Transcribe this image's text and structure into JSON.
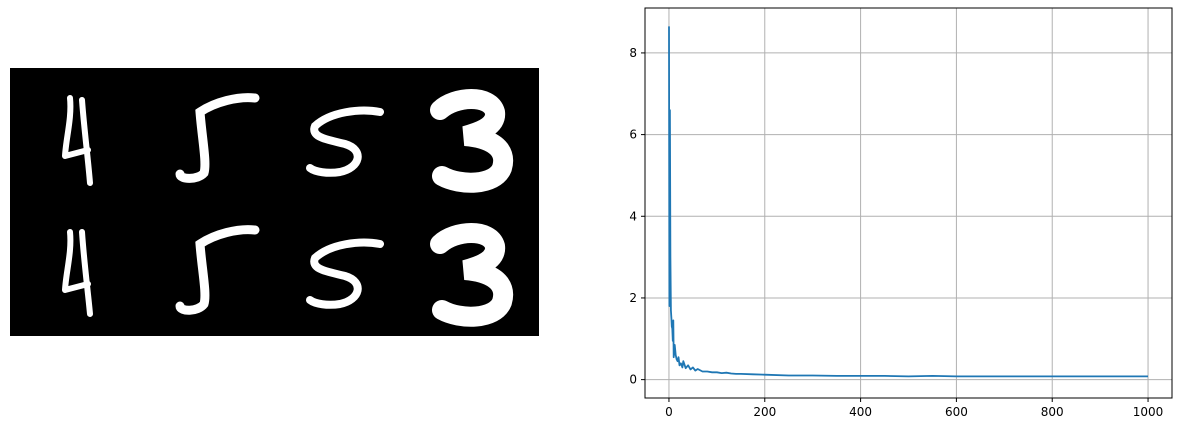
{
  "left_image": {
    "kind": "digit-grid",
    "rows": 2,
    "cols": 4,
    "digits": [
      [
        "4",
        "5",
        "5",
        "3"
      ],
      [
        "4",
        "5",
        "5",
        "3"
      ]
    ],
    "background": "#000000",
    "stroke_color": "#ffffff"
  },
  "chart_data": {
    "type": "line",
    "title": "",
    "xlabel": "",
    "ylabel": "",
    "xlim": [
      -50,
      1050
    ],
    "ylim": [
      -0.45,
      9.1
    ],
    "xticks": [
      0,
      200,
      400,
      600,
      800,
      1000
    ],
    "yticks": [
      0,
      2,
      4,
      6,
      8
    ],
    "grid": true,
    "line_color": "#1f77b4",
    "series": [
      {
        "x": [
          0,
          1,
          2,
          3,
          4,
          5,
          6,
          7,
          8,
          9,
          10,
          12,
          14,
          16,
          18,
          20,
          22,
          25,
          28,
          30,
          35,
          40,
          45,
          50,
          55,
          60,
          70,
          80,
          90,
          100,
          110,
          120,
          130,
          140,
          150,
          175,
          200,
          250,
          300,
          350,
          400,
          450,
          500,
          550,
          600,
          650,
          700,
          750,
          800,
          850,
          900,
          950,
          1000
        ],
        "values": [
          8.65,
          1.8,
          6.6,
          3.0,
          1.7,
          1.5,
          1.3,
          1.25,
          0.95,
          1.45,
          0.55,
          0.85,
          0.6,
          0.5,
          0.45,
          0.55,
          0.35,
          0.4,
          0.3,
          0.45,
          0.28,
          0.35,
          0.25,
          0.3,
          0.22,
          0.26,
          0.2,
          0.2,
          0.18,
          0.18,
          0.16,
          0.17,
          0.15,
          0.14,
          0.14,
          0.13,
          0.12,
          0.1,
          0.1,
          0.09,
          0.09,
          0.09,
          0.08,
          0.09,
          0.08,
          0.08,
          0.08,
          0.08,
          0.08,
          0.08,
          0.08,
          0.08,
          0.08
        ]
      }
    ]
  }
}
